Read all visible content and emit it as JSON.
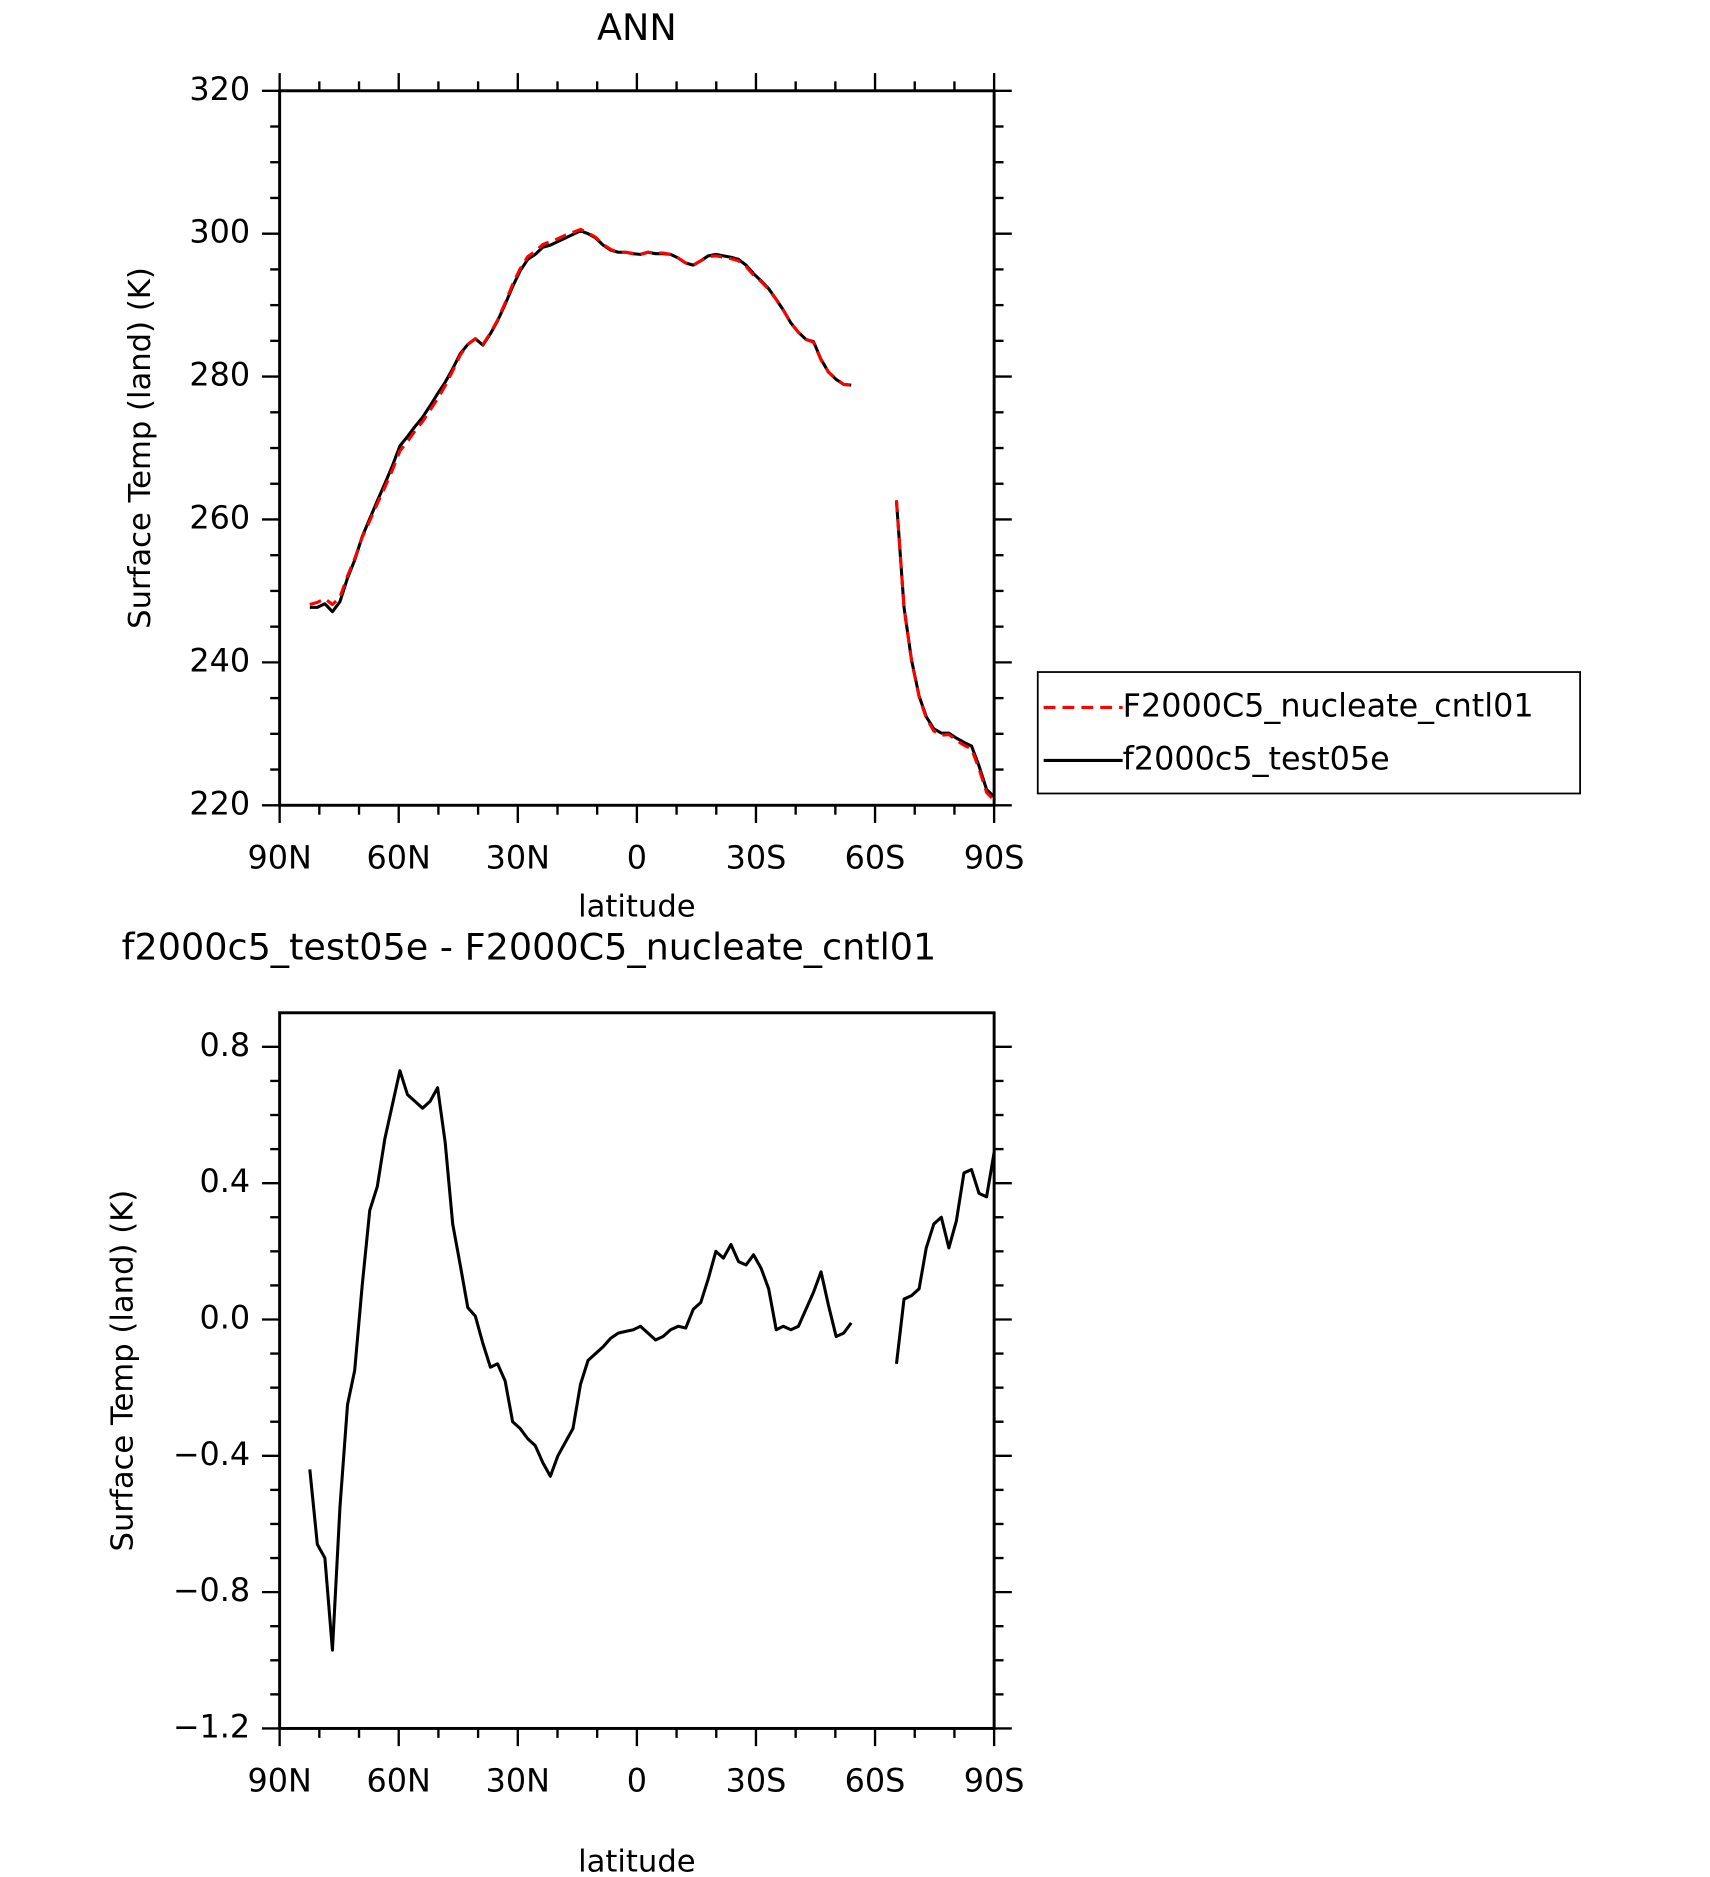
{
  "chart_data": [
    {
      "type": "line",
      "title": "ANN",
      "x_label": "latitude",
      "y_label": "Surface Temp (land) (K)",
      "x": [
        82.4,
        80.5,
        78.6,
        76.7,
        74.8,
        72.9,
        71.1,
        69.2,
        67.3,
        65.4,
        63.5,
        61.6,
        59.7,
        57.8,
        55.9,
        54.0,
        52.1,
        50.2,
        48.3,
        46.4,
        44.5,
        42.6,
        40.7,
        38.8,
        36.9,
        35.1,
        33.2,
        31.3,
        29.4,
        27.5,
        25.6,
        23.7,
        21.8,
        19.9,
        18.0,
        16.1,
        14.2,
        12.3,
        10.4,
        8.5,
        6.6,
        4.7,
        2.8,
        0.9,
        -0.9,
        -2.8,
        -4.7,
        -6.6,
        -8.5,
        -10.4,
        -12.3,
        -14.2,
        -16.1,
        -18.0,
        -19.9,
        -21.8,
        -23.7,
        -25.6,
        -27.5,
        -29.4,
        -31.3,
        -33.2,
        -35.1,
        -36.9,
        -38.8,
        -40.7,
        -42.6,
        -44.5,
        -46.4,
        -48.3,
        -50.2,
        -52.1,
        -54.0,
        -55.9,
        -57.8,
        -59.7,
        -61.6,
        -63.5,
        -65.4,
        -67.3,
        -69.2,
        -71.1,
        -72.9,
        -74.8,
        -76.7,
        -78.6,
        -80.5,
        -82.4,
        -84.3,
        -86.2,
        -88.1,
        -90.0
      ],
      "series": [
        {
          "name": "F2000C5_nucleate_cntl01",
          "color": "#ff0000",
          "line_style": "dashed",
          "values": [
            248.1,
            248.4,
            248.9,
            248.1,
            249.1,
            252.1,
            254.5,
            257.5,
            259.8,
            262.2,
            264.5,
            266.9,
            269.6,
            270.9,
            272.4,
            273.7,
            275.3,
            276.9,
            278.7,
            280.8,
            283.0,
            284.5,
            285.3,
            284.5,
            286.1,
            287.9,
            290.3,
            292.9,
            295.1,
            296.8,
            297.5,
            298.5,
            298.9,
            299.3,
            299.8,
            300.2,
            300.6,
            300.1,
            299.5,
            298.5,
            297.8,
            297.4,
            297.4,
            297.2,
            297.1,
            297.4,
            297.3,
            297.3,
            297.1,
            296.6,
            295.9,
            295.6,
            296.2,
            296.8,
            296.9,
            296.7,
            296.5,
            296.2,
            295.4,
            294.2,
            293.3,
            292.2,
            290.8,
            289.3,
            287.5,
            286.2,
            285.2,
            284.8,
            282.3,
            280.6,
            279.7,
            278.9,
            278.8,
            null,
            null,
            null,
            null,
            null,
            262.7,
            247.6,
            240.2,
            235.2,
            232.2,
            230.4,
            229.8,
            229.9,
            229.1,
            228.4,
            227.9,
            225.1,
            221.8,
            220.7
          ]
        },
        {
          "name": "f2000c5_test05e",
          "color": "#000000",
          "line_style": "solid",
          "values": [
            247.7,
            247.7,
            248.2,
            247.1,
            248.5,
            251.8,
            254.3,
            257.6,
            260.1,
            262.6,
            265.0,
            267.5,
            270.3,
            271.6,
            273.0,
            274.3,
            275.9,
            277.6,
            279.2,
            281.1,
            283.2,
            284.5,
            285.3,
            284.4,
            286.0,
            287.8,
            290.1,
            292.6,
            294.8,
            296.4,
            297.1,
            298.1,
            298.4,
            298.9,
            299.4,
            299.9,
            300.4,
            300.0,
            299.4,
            298.4,
            297.7,
            297.4,
            297.4,
            297.2,
            297.1,
            297.4,
            297.2,
            297.2,
            297.1,
            296.6,
            295.9,
            295.6,
            296.2,
            296.9,
            297.1,
            296.9,
            296.7,
            296.4,
            295.6,
            294.4,
            293.4,
            292.3,
            290.8,
            289.3,
            287.5,
            286.2,
            285.2,
            284.9,
            282.4,
            280.6,
            279.6,
            278.9,
            278.8,
            null,
            null,
            null,
            null,
            null,
            262.6,
            247.7,
            240.3,
            235.3,
            232.4,
            230.7,
            230.1,
            230.1,
            229.4,
            228.8,
            228.3,
            225.5,
            222.2,
            221.2
          ]
        }
      ],
      "xlim": [
        90,
        -90
      ],
      "xticks": [
        {
          "value": 90,
          "label": "90N"
        },
        {
          "value": 60,
          "label": "60N"
        },
        {
          "value": 30,
          "label": "30N"
        },
        0,
        {
          "value": -30,
          "label": "30S"
        },
        {
          "value": -60,
          "label": "60S"
        },
        {
          "value": -90,
          "label": "90S"
        }
      ],
      "ylim": [
        220,
        320
      ],
      "yticks": [
        220,
        240,
        260,
        280,
        300,
        320
      ],
      "legend": "right"
    },
    {
      "type": "line",
      "title": "f2000c5_test05e - F2000C5_nucleate_cntl01",
      "x_label": "latitude",
      "y_label": "Surface Temp (land) (K)",
      "x": [
        82.4,
        80.5,
        78.6,
        76.7,
        74.8,
        72.9,
        71.1,
        69.2,
        67.3,
        65.4,
        63.5,
        61.6,
        59.7,
        57.8,
        55.9,
        54.0,
        52.1,
        50.2,
        48.3,
        46.4,
        44.5,
        42.6,
        40.7,
        38.8,
        36.9,
        35.1,
        33.2,
        31.3,
        29.4,
        27.5,
        25.6,
        23.7,
        21.8,
        19.9,
        18.0,
        16.1,
        14.2,
        12.3,
        10.4,
        8.5,
        6.6,
        4.7,
        2.8,
        0.9,
        -0.9,
        -2.8,
        -4.7,
        -6.6,
        -8.5,
        -10.4,
        -12.3,
        -14.2,
        -16.1,
        -18.0,
        -19.9,
        -21.8,
        -23.7,
        -25.6,
        -27.5,
        -29.4,
        -31.3,
        -33.2,
        -35.1,
        -36.9,
        -38.8,
        -40.7,
        -42.6,
        -44.5,
        -46.4,
        -48.3,
        -50.2,
        -52.1,
        -54.0,
        -55.9,
        -57.8,
        -59.7,
        -61.6,
        -63.5,
        -65.4,
        -67.3,
        -69.2,
        -71.1,
        -72.9,
        -74.8,
        -76.7,
        -78.6,
        -80.5,
        -82.4,
        -84.3,
        -86.2,
        -88.1,
        -90.0
      ],
      "series": [
        {
          "color": "#000000",
          "line_style": "solid",
          "values": [
            -0.44,
            -0.66,
            -0.7,
            -0.97,
            -0.55,
            -0.25,
            -0.15,
            0.1,
            0.32,
            0.39,
            0.53,
            0.63,
            0.73,
            0.66,
            0.64,
            0.62,
            0.64,
            0.68,
            0.52,
            0.28,
            0.16,
            0.035,
            0.01,
            -0.07,
            -0.14,
            -0.13,
            -0.18,
            -0.3,
            -0.32,
            -0.35,
            -0.37,
            -0.42,
            -0.46,
            -0.4,
            -0.36,
            -0.32,
            -0.19,
            -0.12,
            -0.1,
            -0.08,
            -0.055,
            -0.04,
            -0.035,
            -0.03,
            -0.02,
            -0.04,
            -0.06,
            -0.05,
            -0.03,
            -0.02,
            -0.025,
            0.03,
            0.05,
            0.12,
            0.2,
            0.18,
            0.22,
            0.17,
            0.16,
            0.19,
            0.15,
            0.09,
            -0.03,
            -0.02,
            -0.03,
            -0.02,
            0.03,
            0.08,
            0.14,
            0.04,
            -0.05,
            -0.04,
            -0.01,
            null,
            null,
            null,
            null,
            null,
            -0.13,
            0.06,
            0.07,
            0.09,
            0.21,
            0.28,
            0.3,
            0.21,
            0.29,
            0.43,
            0.44,
            0.37,
            0.36,
            0.49
          ]
        }
      ],
      "xlim": [
        90,
        -90
      ],
      "xticks": [
        {
          "value": 90,
          "label": "90N"
        },
        {
          "value": 60,
          "label": "60N"
        },
        {
          "value": 30,
          "label": "30N"
        },
        0,
        {
          "value": -30,
          "label": "30S"
        },
        {
          "value": -60,
          "label": "60S"
        },
        {
          "value": -90,
          "label": "90S"
        }
      ],
      "ylim": [
        -1.2,
        0.9
      ],
      "yticks": [
        {
          "value": -1.2,
          "label": "−1.2"
        },
        {
          "value": -0.8,
          "label": "−0.8"
        },
        {
          "value": -0.4,
          "label": "−0.4"
        },
        {
          "value": 0,
          "label": "0.0"
        },
        0.4,
        0.8
      ]
    }
  ]
}
